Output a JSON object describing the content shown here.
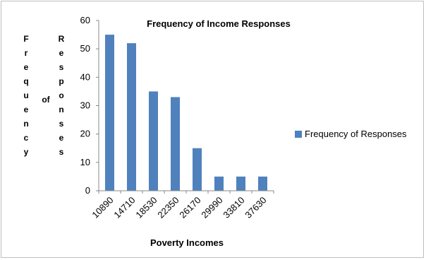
{
  "chart_data": {
    "type": "bar",
    "title": "Frequency of Income Responses",
    "xlabel": "Poverty Incomes",
    "ylabel": {
      "left": "Frequency",
      "middle": "of",
      "right": "Responses"
    },
    "categories": [
      "10890",
      "14710",
      "18530",
      "22350",
      "26170",
      "29990",
      "33810",
      "37630"
    ],
    "series": [
      {
        "name": "Frequency of Responses",
        "values": [
          55,
          52,
          35,
          33,
          15,
          5,
          5,
          5
        ]
      }
    ],
    "ylim": [
      0,
      60
    ],
    "yticks": [
      "0",
      "10",
      "20",
      "30",
      "40",
      "50",
      "60"
    ],
    "grid": false,
    "legend_position": "right",
    "bar_color": "#4f81bd"
  }
}
